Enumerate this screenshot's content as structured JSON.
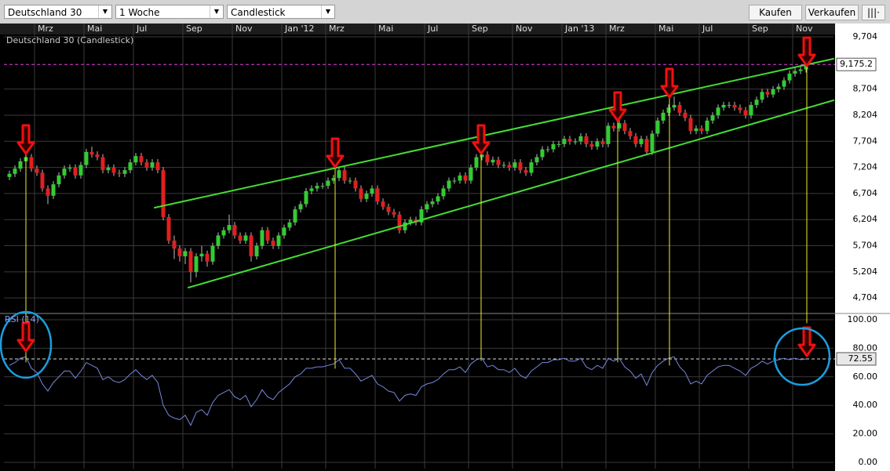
{
  "toolbar": {
    "instrument": "Deutschland 30",
    "interval": "1 Woche",
    "chart_type": "Candlestick",
    "buy": "Kaufen",
    "sell": "Verkaufen"
  },
  "chart_data": [
    {
      "type": "candlestick",
      "title": "Deutschland 30 (Candlestick)",
      "open": [
        7020,
        7080,
        7180,
        7320,
        7400,
        7180,
        7100,
        6800,
        6660,
        6880,
        7050,
        7180,
        7200,
        7050,
        7250,
        7500,
        7450,
        7400,
        7150,
        7200,
        7100,
        7080,
        7150,
        7300,
        7420,
        7300,
        7200,
        7300,
        7150,
        6250,
        5800,
        5650,
        5500,
        5600,
        5200,
        5500,
        5550,
        5400,
        5700,
        5900,
        6000,
        6100,
        5900,
        5800,
        5900,
        5500,
        5700,
        6000,
        5800,
        5700,
        5900,
        6050,
        6150,
        6400,
        6500,
        6750,
        6800,
        6850,
        6850,
        6950,
        7000,
        7150,
        6950,
        6950,
        6800,
        6600,
        6700,
        6800,
        6550,
        6450,
        6350,
        6300,
        6000,
        6150,
        6200,
        6150,
        6400,
        6500,
        6550,
        6650,
        6800,
        6950,
        6950,
        7050,
        6950,
        7200,
        7400,
        7450,
        7300,
        7350,
        7250,
        7250,
        7200,
        7300,
        7150,
        7100,
        7300,
        7400,
        7550,
        7550,
        7650,
        7650,
        7750,
        7700,
        7700,
        7800,
        7650,
        7600,
        7700,
        7650,
        8000,
        7950,
        8050,
        7900,
        7800,
        7650,
        7750,
        7500,
        7850,
        8100,
        8250,
        8350,
        8400,
        8250,
        8150,
        7900,
        7950,
        7900,
        8100,
        8200,
        8350,
        8400,
        8400,
        8350,
        8300,
        8200,
        8400,
        8500,
        8650,
        8600,
        8700,
        8750,
        8870,
        9000,
        9050,
        9080
      ],
      "high": [
        7140,
        7240,
        7380,
        7460,
        7460,
        7240,
        7160,
        6860,
        6940,
        7110,
        7240,
        7260,
        7260,
        7310,
        7560,
        7600,
        7510,
        7460,
        7260,
        7260,
        7160,
        7210,
        7360,
        7480,
        7480,
        7360,
        7360,
        7360,
        7210,
        6310,
        5900,
        5710,
        5660,
        5660,
        5560,
        5700,
        5610,
        5760,
        5960,
        6060,
        6300,
        6160,
        5960,
        5960,
        5960,
        5760,
        6060,
        6060,
        5860,
        5960,
        6110,
        6210,
        6460,
        6560,
        6810,
        6860,
        6910,
        6910,
        7010,
        7060,
        7210,
        7210,
        7010,
        7010,
        6860,
        6760,
        6860,
        6860,
        6610,
        6510,
        6410,
        6360,
        6210,
        6260,
        6260,
        6460,
        6560,
        6610,
        6710,
        6860,
        7010,
        7010,
        7110,
        7110,
        7260,
        7460,
        7510,
        7510,
        7410,
        7410,
        7310,
        7310,
        7360,
        7360,
        7210,
        7360,
        7460,
        7610,
        7610,
        7710,
        7710,
        7810,
        7810,
        7760,
        7860,
        7860,
        7710,
        7760,
        7760,
        8060,
        8060,
        8110,
        8110,
        7960,
        7860,
        7810,
        7810,
        7910,
        8160,
        8310,
        8410,
        8560,
        8460,
        8310,
        8210,
        8010,
        8010,
        8160,
        8260,
        8410,
        8460,
        8460,
        8460,
        8410,
        8360,
        8460,
        8560,
        8710,
        8710,
        8760,
        8810,
        8930,
        9060,
        9110,
        9140,
        9230
      ],
      "low": [
        6960,
        7020,
        7120,
        7260,
        7120,
        7040,
        6740,
        6500,
        6600,
        6820,
        6990,
        7120,
        6990,
        6990,
        7190,
        7390,
        7340,
        7090,
        7090,
        7040,
        7020,
        7020,
        7090,
        7240,
        7240,
        7140,
        7140,
        7090,
        6190,
        5740,
        5450,
        5400,
        5350,
        5000,
        5100,
        5400,
        5300,
        5340,
        5640,
        5840,
        5940,
        5840,
        5740,
        5740,
        5400,
        5440,
        5640,
        5740,
        5640,
        5640,
        5840,
        5990,
        6090,
        6340,
        6440,
        6690,
        6740,
        6790,
        6790,
        6890,
        6940,
        6890,
        6890,
        6740,
        6540,
        6540,
        6640,
        6490,
        6390,
        6290,
        6240,
        5940,
        5940,
        6090,
        6090,
        6090,
        6340,
        6440,
        6490,
        6590,
        6740,
        6890,
        6890,
        6890,
        6890,
        7140,
        7340,
        7240,
        7240,
        7190,
        7190,
        7140,
        7140,
        7090,
        7040,
        7040,
        7240,
        7340,
        7490,
        7490,
        7590,
        7590,
        7640,
        7640,
        7640,
        7590,
        7540,
        7540,
        7590,
        7590,
        7890,
        7890,
        7840,
        7740,
        7590,
        7590,
        7440,
        7440,
        7790,
        8040,
        8190,
        8290,
        8190,
        8090,
        7840,
        7840,
        7840,
        7840,
        8040,
        8140,
        8290,
        8340,
        8290,
        8240,
        8140,
        8140,
        8340,
        8440,
        8540,
        8540,
        8640,
        8690,
        8810,
        8940,
        8990,
        9020
      ],
      "close": [
        7080,
        7180,
        7320,
        7400,
        7180,
        7100,
        6800,
        6660,
        6880,
        7050,
        7180,
        7200,
        7050,
        7250,
        7500,
        7450,
        7400,
        7150,
        7200,
        7100,
        7080,
        7150,
        7300,
        7420,
        7300,
        7200,
        7300,
        7150,
        6250,
        5800,
        5650,
        5500,
        5600,
        5200,
        5500,
        5550,
        5400,
        5700,
        5900,
        6000,
        6100,
        5900,
        5800,
        5900,
        5500,
        5700,
        6000,
        5800,
        5700,
        5900,
        6050,
        6150,
        6400,
        6500,
        6750,
        6800,
        6850,
        6850,
        6950,
        7000,
        7150,
        6950,
        6950,
        6800,
        6600,
        6700,
        6800,
        6550,
        6450,
        6350,
        6300,
        6000,
        6150,
        6200,
        6150,
        6400,
        6500,
        6550,
        6650,
        6800,
        6950,
        6950,
        7050,
        6950,
        7200,
        7400,
        7450,
        7300,
        7350,
        7250,
        7250,
        7200,
        7300,
        7150,
        7100,
        7300,
        7400,
        7550,
        7550,
        7650,
        7650,
        7750,
        7700,
        7700,
        7800,
        7650,
        7600,
        7700,
        7650,
        8000,
        7950,
        8050,
        7900,
        7800,
        7650,
        7750,
        7500,
        7850,
        8100,
        8250,
        8350,
        8400,
        8250,
        8150,
        7900,
        7950,
        7900,
        8100,
        8200,
        8350,
        8400,
        8400,
        8350,
        8300,
        8200,
        8400,
        8500,
        8650,
        8600,
        8700,
        8750,
        8870,
        9000,
        9050,
        9080,
        9175
      ],
      "up_color": "#33cc33",
      "down_color": "#e02020",
      "xticks": [
        {
          "value": 5,
          "label": "Mrz"
        },
        {
          "value": 14,
          "label": "Mai"
        },
        {
          "value": 23,
          "label": "Jul"
        },
        {
          "value": 32,
          "label": "Sep"
        },
        {
          "value": 41,
          "label": "Nov"
        },
        {
          "value": 50,
          "label": "Jan '12"
        },
        {
          "value": 58,
          "label": "Mrz"
        },
        {
          "value": 67,
          "label": "Mai"
        },
        {
          "value": 76,
          "label": "Jul"
        },
        {
          "value": 84,
          "label": "Sep"
        },
        {
          "value": 92,
          "label": "Nov"
        },
        {
          "value": 101,
          "label": "Jan '13"
        },
        {
          "value": 109,
          "label": "Mrz"
        },
        {
          "value": 118,
          "label": "Mai"
        },
        {
          "value": 126,
          "label": "Jul"
        },
        {
          "value": 135,
          "label": "Sep"
        },
        {
          "value": 143,
          "label": "Nov"
        }
      ],
      "xlim": [
        -1,
        150
      ],
      "ylim": [
        4406,
        9749
      ],
      "yticks": [
        {
          "value": 4704,
          "label": "4,704"
        },
        {
          "value": 5204,
          "label": "5,204"
        },
        {
          "value": 5704,
          "label": "5,704"
        },
        {
          "value": 6204,
          "label": "6,204"
        },
        {
          "value": 6704,
          "label": "6,704"
        },
        {
          "value": 7204,
          "label": "7,204"
        },
        {
          "value": 7704,
          "label": "7,704"
        },
        {
          "value": 8204,
          "label": "8,204"
        },
        {
          "value": 8704,
          "label": "8,704"
        },
        {
          "value": 9704,
          "label": "9,704"
        }
      ],
      "last": {
        "value": 9175.2,
        "label": "9,175.2"
      },
      "grid": true
    },
    {
      "type": "line",
      "title": "RSI (14)",
      "color": "#7788dd",
      "values": [
        68,
        70,
        73,
        74,
        66,
        63,
        55,
        50,
        56,
        60,
        64,
        64,
        59,
        64,
        70,
        68,
        66,
        58,
        60,
        57,
        56,
        58,
        62,
        65,
        61,
        58,
        61,
        56,
        40,
        33,
        31,
        30,
        33,
        26,
        35,
        37,
        33,
        42,
        47,
        49,
        51,
        46,
        44,
        47,
        39,
        44,
        51,
        46,
        44,
        49,
        52,
        55,
        60,
        62,
        66,
        66,
        67,
        67,
        68,
        69,
        72,
        66,
        66,
        62,
        57,
        59,
        61,
        55,
        53,
        50,
        49,
        43,
        47,
        48,
        47,
        53,
        55,
        56,
        58,
        62,
        65,
        65,
        67,
        63,
        69,
        72,
        73,
        67,
        68,
        65,
        65,
        63,
        66,
        61,
        59,
        64,
        67,
        70,
        70,
        72,
        72,
        73,
        71,
        71,
        73,
        67,
        65,
        68,
        66,
        73,
        71,
        73,
        67,
        64,
        59,
        62,
        54,
        63,
        68,
        71,
        73,
        74,
        67,
        63,
        55,
        57,
        55,
        61,
        64,
        67,
        68,
        68,
        66,
        64,
        61,
        66,
        68,
        71,
        69,
        71,
        72,
        73,
        72,
        73,
        72,
        72.55
      ],
      "xlim": [
        -1,
        150
      ],
      "ylim": [
        0,
        100
      ],
      "yticks": [
        {
          "value": 0,
          "label": "0.00"
        },
        {
          "value": 20,
          "label": "20.00"
        },
        {
          "value": 40,
          "label": "40.00"
        },
        {
          "value": 60,
          "label": "60.00"
        },
        {
          "value": 80,
          "label": "80.00"
        },
        {
          "value": 100,
          "label": "100.00"
        }
      ],
      "last": {
        "value": 72.55,
        "label": "72.55"
      },
      "grid": true
    }
  ]
}
